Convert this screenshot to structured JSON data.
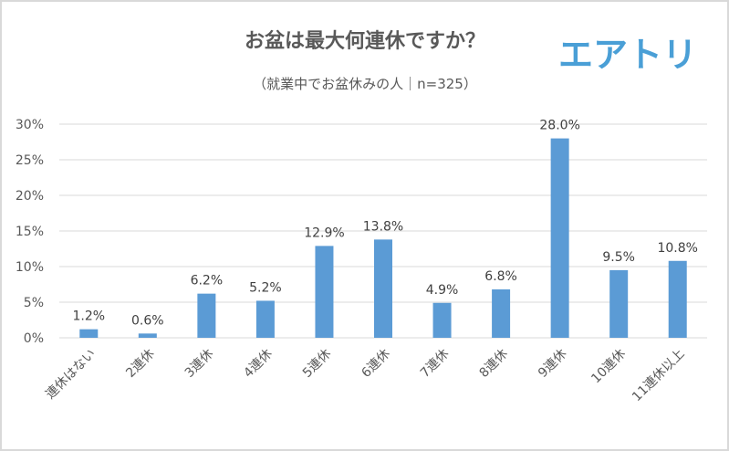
{
  "chart_data": {
    "type": "bar",
    "title": "お盆は最大何連休ですか？",
    "subtitle": "（就業中でお盆休みの人｜n=325）",
    "logo": "エアトリ",
    "categories": [
      "連休はない",
      "2連休",
      "3連休",
      "4連休",
      "5連休",
      "6連休",
      "7連休",
      "8連休",
      "9連休",
      "10連休",
      "11連休以上"
    ],
    "values": [
      1.2,
      0.6,
      6.2,
      5.2,
      12.9,
      13.8,
      4.9,
      6.8,
      28.0,
      9.5,
      10.8
    ],
    "data_labels": [
      "1.2%",
      "0.6%",
      "6.2%",
      "5.2%",
      "12.9%",
      "13.8%",
      "4.9%",
      "6.8%",
      "28.0%",
      "9.5%",
      "10.8%"
    ],
    "y_ticks": [
      "0%",
      "5%",
      "10%",
      "15%",
      "20%",
      "25%",
      "30%"
    ],
    "ylim": [
      0,
      30
    ],
    "unit": "%",
    "grid": true,
    "legend": "none",
    "colors": {
      "bar": "#5b9bd5",
      "grid": "#d9d9d9",
      "text": "#595959",
      "logo": "#4a9fd6"
    }
  }
}
